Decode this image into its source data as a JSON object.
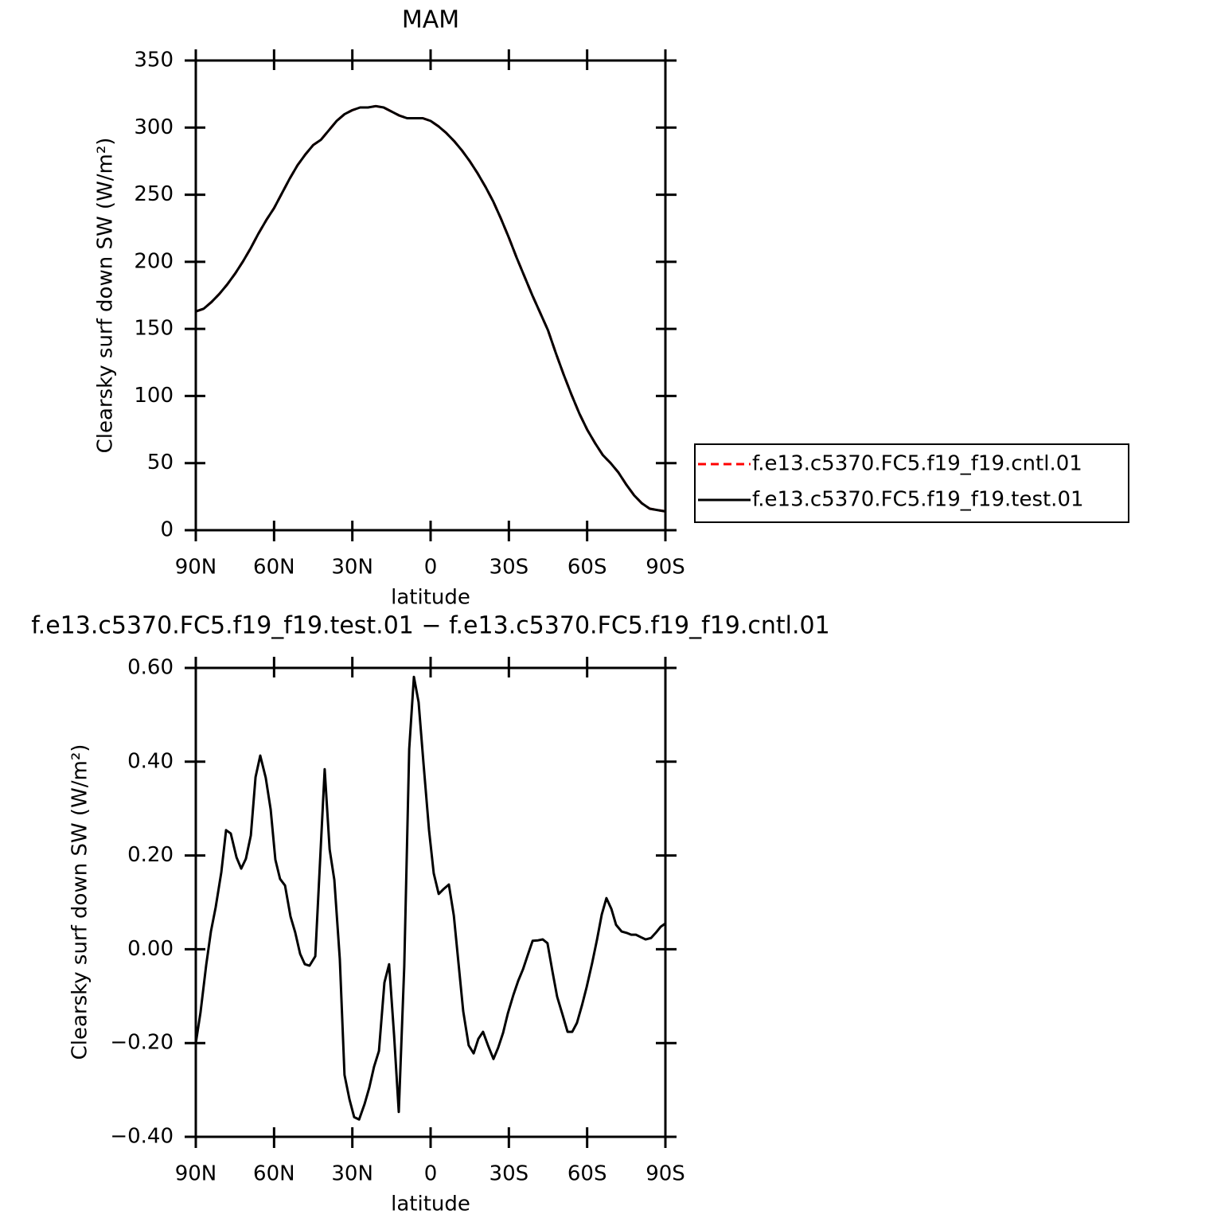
{
  "chart_data": [
    {
      "type": "line",
      "title": "MAM",
      "xlabel": "latitude",
      "ylabel": "Clearsky surf down SW (W/m²)",
      "x": [
        90,
        87,
        84,
        81,
        78,
        75,
        72,
        69,
        66,
        63,
        60,
        57,
        54,
        51,
        48,
        45,
        42,
        39,
        36,
        33,
        30,
        27,
        24,
        21,
        18,
        15,
        12,
        9,
        6,
        3,
        0,
        -3,
        -6,
        -9,
        -12,
        -15,
        -18,
        -21,
        -24,
        -27,
        -30,
        -33,
        -36,
        -39,
        -42,
        -45,
        -48,
        -51,
        -54,
        -57,
        -60,
        -63,
        -66,
        -69,
        -72,
        -75,
        -78,
        -81,
        -84,
        -87,
        -90
      ],
      "series": [
        {
          "name": "f.e13.c5370.FC5.f19_f19.cntl.01",
          "color": "#ff0000",
          "style": "dashed",
          "values": [
            163,
            165,
            170,
            176,
            183,
            191,
            200,
            210,
            221,
            231,
            240,
            251,
            262,
            272,
            280,
            287,
            291,
            298,
            305,
            310,
            313,
            315,
            315,
            316,
            315,
            312,
            309,
            307,
            307,
            307,
            305,
            301,
            296,
            290,
            283,
            275,
            266,
            256,
            245,
            232,
            218,
            203,
            189,
            175,
            162,
            149,
            132,
            116,
            101,
            87,
            75,
            65,
            56,
            50,
            43,
            34,
            26,
            20,
            16,
            15,
            14
          ]
        },
        {
          "name": "f.e13.c5370.FC5.f19_f19.test.01",
          "color": "#000000",
          "style": "solid",
          "values": [
            163,
            165,
            170,
            176,
            183,
            191,
            200,
            210,
            221,
            231,
            240,
            251,
            262,
            272,
            280,
            287,
            291,
            298,
            305,
            310,
            313,
            315,
            315,
            316,
            315,
            312,
            309,
            307,
            307,
            307,
            305,
            301,
            296,
            290,
            283,
            275,
            266,
            256,
            245,
            232,
            218,
            203,
            189,
            175,
            162,
            149,
            132,
            116,
            101,
            87,
            75,
            65,
            56,
            50,
            43,
            34,
            26,
            20,
            16,
            15,
            14
          ]
        }
      ],
      "xlim": [
        90,
        -90
      ],
      "xticks": [
        {
          "value": 90,
          "label": "90N"
        },
        {
          "value": 60,
          "label": "60N"
        },
        {
          "value": 30,
          "label": "30N"
        },
        0,
        {
          "value": -30,
          "label": "30S"
        },
        {
          "value": -60,
          "label": "60S"
        },
        {
          "value": -90,
          "label": "90S"
        }
      ],
      "ylim": [
        0,
        350
      ],
      "yticks": [
        0,
        50,
        100,
        150,
        200,
        250,
        300,
        350
      ],
      "legend": "right"
    },
    {
      "type": "line",
      "title": "f.e13.c5370.FC5.f19_f19.test.01 − f.e13.c5370.FC5.f19_f19.cntl.01",
      "xlabel": "latitude",
      "ylabel": "Clearsky surf down SW (W/m²)",
      "x": [
        90,
        88.2,
        86,
        84.2,
        82.4,
        80.2,
        78.4,
        76.6,
        74.4,
        72.6,
        70.8,
        68.9,
        67.1,
        65.3,
        63.2,
        61.3,
        59.5,
        57.7,
        55.8,
        53.7,
        51.9,
        50,
        48.2,
        46.4,
        44.2,
        40.6,
        38.7,
        36.9,
        34.8,
        33,
        31.1,
        29.3,
        27.4,
        25.3,
        23.5,
        21.7,
        19.8,
        17.7,
        15.9,
        14,
        12.2,
        10.1,
        8.2,
        6.4,
        4.6,
        2.7,
        0.6,
        -1.2,
        -3.1,
        -4.9,
        -7,
        -8.9,
        -10.7,
        -12.5,
        -14.6,
        -16.5,
        -18.3,
        -20.1,
        -22,
        -24.1,
        -25.9,
        -27.8,
        -29.6,
        -31.7,
        -33.6,
        -35.4,
        -37.2,
        -39.1,
        -41.2,
        -43,
        -44.8,
        -46.7,
        -48.5,
        -50.6,
        -52.5,
        -54.3,
        -56.1,
        -58,
        -59.8,
        -61.9,
        -63.8,
        -65.6,
        -67.4,
        -69.3,
        -71.1,
        -73.2,
        -75.1,
        -76.9,
        -78.7,
        -80.5,
        -82.4,
        -84.5,
        -86.3,
        -88.2,
        -90
      ],
      "values": [
        -0.2,
        -0.135,
        -0.033,
        0.038,
        0.089,
        0.165,
        0.254,
        0.247,
        0.196,
        0.172,
        0.193,
        0.243,
        0.367,
        0.413,
        0.366,
        0.298,
        0.191,
        0.15,
        0.136,
        0.07,
        0.036,
        -0.01,
        -0.032,
        -0.035,
        -0.015,
        0.384,
        0.213,
        0.148,
        -0.021,
        -0.268,
        -0.32,
        -0.358,
        -0.363,
        -0.33,
        -0.295,
        -0.251,
        -0.217,
        -0.071,
        -0.032,
        -0.183,
        -0.347,
        -0.037,
        0.427,
        0.581,
        0.527,
        0.395,
        0.254,
        0.162,
        0.118,
        0.128,
        0.138,
        0.072,
        -0.03,
        -0.132,
        -0.205,
        -0.222,
        -0.191,
        -0.176,
        -0.205,
        -0.234,
        -0.21,
        -0.178,
        -0.137,
        -0.098,
        -0.067,
        -0.043,
        -0.013,
        0.018,
        0.019,
        0.021,
        0.013,
        -0.047,
        -0.101,
        -0.14,
        -0.176,
        -0.176,
        -0.157,
        -0.12,
        -0.081,
        -0.03,
        0.021,
        0.074,
        0.109,
        0.086,
        0.052,
        0.038,
        0.035,
        0.031,
        0.031,
        0.026,
        0.021,
        0.024,
        0.035,
        0.048,
        0.055
      ],
      "color": "#000000",
      "xlim": [
        90,
        -90
      ],
      "xticks": [
        {
          "value": 90,
          "label": "90N"
        },
        {
          "value": 60,
          "label": "60N"
        },
        {
          "value": 30,
          "label": "30N"
        },
        0,
        {
          "value": -30,
          "label": "30S"
        },
        {
          "value": -60,
          "label": "60S"
        },
        {
          "value": -90,
          "label": "90S"
        }
      ],
      "ylim": [
        -0.4,
        0.6
      ],
      "yticks": [
        {
          "value": -0.4,
          "label": "−0.40"
        },
        {
          "value": -0.2,
          "label": "−0.20"
        },
        {
          "value": 0,
          "label": "0.00"
        },
        {
          "value": 0.2,
          "label": "0.20"
        },
        {
          "value": 0.4,
          "label": "0.40"
        },
        {
          "value": 0.6,
          "label": "0.60"
        }
      ]
    }
  ]
}
